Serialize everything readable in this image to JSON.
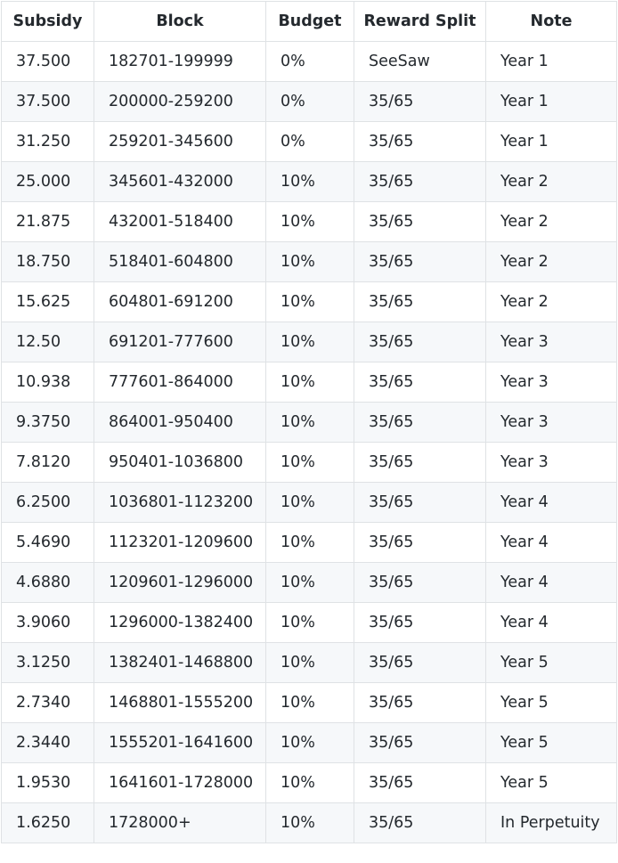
{
  "table": {
    "headers": [
      "Subsidy",
      "Block",
      "Budget",
      "Reward Split",
      "Note"
    ],
    "rows": [
      [
        "37.500",
        "182701-199999",
        "0%",
        "SeeSaw",
        "Year 1"
      ],
      [
        "37.500",
        "200000-259200",
        "0%",
        "35/65",
        "Year 1"
      ],
      [
        "31.250",
        "259201-345600",
        "0%",
        "35/65",
        "Year 1"
      ],
      [
        "25.000",
        "345601-432000",
        "10%",
        "35/65",
        "Year 2"
      ],
      [
        "21.875",
        "432001-518400",
        "10%",
        "35/65",
        "Year 2"
      ],
      [
        "18.750",
        "518401-604800",
        "10%",
        "35/65",
        "Year 2"
      ],
      [
        "15.625",
        "604801-691200",
        "10%",
        "35/65",
        "Year 2"
      ],
      [
        "12.50",
        "691201-777600",
        "10%",
        "35/65",
        "Year 3"
      ],
      [
        "10.938",
        "777601-864000",
        "10%",
        "35/65",
        "Year 3"
      ],
      [
        "9.3750",
        "864001-950400",
        "10%",
        "35/65",
        "Year 3"
      ],
      [
        "7.8120",
        "950401-1036800",
        "10%",
        "35/65",
        "Year 3"
      ],
      [
        "6.2500",
        "1036801-1123200",
        "10%",
        "35/65",
        "Year 4"
      ],
      [
        "5.4690",
        "1123201-1209600",
        "10%",
        "35/65",
        "Year 4"
      ],
      [
        "4.6880",
        "1209601-1296000",
        "10%",
        "35/65",
        "Year 4"
      ],
      [
        "3.9060",
        "1296000-1382400",
        "10%",
        "35/65",
        "Year 4"
      ],
      [
        "3.1250",
        "1382401-1468800",
        "10%",
        "35/65",
        "Year 5"
      ],
      [
        "2.7340",
        "1468801-1555200",
        "10%",
        "35/65",
        "Year 5"
      ],
      [
        "2.3440",
        "1555201-1641600",
        "10%",
        "35/65",
        "Year 5"
      ],
      [
        "1.9530",
        "1641601-1728000",
        "10%",
        "35/65",
        "Year 5"
      ],
      [
        "1.6250",
        "1728000+",
        "10%",
        "35/65",
        "In Perpetuity"
      ]
    ]
  },
  "colors": {
    "border": "#dfe2e5",
    "stripe": "#f6f8fa",
    "text": "#24292e"
  }
}
